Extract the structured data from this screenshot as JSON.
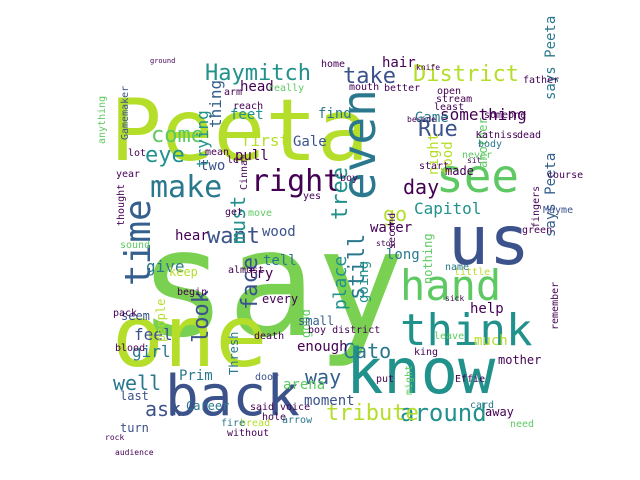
{
  "colors": {
    "background": "#ffffff",
    "palette": [
      "#440154",
      "#3b528b",
      "#21918c",
      "#5ec962",
      "#b5de2b",
      "#2a788e",
      "#7ad151",
      "#355f8d"
    ]
  },
  "words": [
    {
      "text": "say",
      "color": "#7ad151",
      "weight": 1.0
    },
    {
      "text": "Peeta",
      "color": "#b5de2b",
      "weight": 0.85
    },
    {
      "text": "one",
      "color": "#b5de2b",
      "weight": 0.7
    },
    {
      "text": "know",
      "color": "#21918c",
      "weight": 0.6
    },
    {
      "text": "back",
      "color": "#3b528b",
      "weight": 0.55
    },
    {
      "text": "us",
      "color": "#3b528b",
      "weight": 0.5
    },
    {
      "text": "think",
      "color": "#21918c",
      "weight": 0.4
    },
    {
      "text": "hand",
      "color": "#5ec962",
      "weight": 0.38
    },
    {
      "text": "see",
      "color": "#5ec962",
      "weight": 0.36
    },
    {
      "text": "even",
      "color": "#2a788e",
      "weight": 0.34
    },
    {
      "text": "time",
      "color": "#355f8d",
      "weight": 0.3
    },
    {
      "text": "make",
      "color": "#2a788e",
      "weight": 0.28
    },
    {
      "text": "right",
      "color": "#440154",
      "weight": 0.26
    },
    {
      "text": "around",
      "color": "#21918c",
      "weight": 0.24
    },
    {
      "text": "tribute",
      "color": "#b5de2b",
      "weight": 0.22
    },
    {
      "text": "Haymitch",
      "color": "#21918c",
      "weight": 0.21
    },
    {
      "text": "District",
      "color": "#b5de2b",
      "weight": 0.21
    },
    {
      "text": "take",
      "color": "#3b528b",
      "weight": 0.2
    },
    {
      "text": "Rue",
      "color": "#3b528b",
      "weight": 0.2
    },
    {
      "text": "eye",
      "color": "#21918c",
      "weight": 0.2
    },
    {
      "text": "come",
      "color": "#5ec962",
      "weight": 0.2
    },
    {
      "text": "face",
      "color": "#3b528b",
      "weight": 0.18
    },
    {
      "text": "want",
      "color": "#3b528b",
      "weight": 0.18
    },
    {
      "text": "still",
      "color": "#2a788e",
      "weight": 0.18
    },
    {
      "text": "tree",
      "color": "#21918c",
      "weight": 0.18
    },
    {
      "text": "must",
      "color": "#21918c",
      "weight": 0.17
    },
    {
      "text": "look",
      "color": "#3b528b",
      "weight": 0.17
    },
    {
      "text": "Cato",
      "color": "#2a788e",
      "weight": 0.16
    },
    {
      "text": "day",
      "color": "#440154",
      "weight": 0.16
    },
    {
      "text": "go",
      "color": "#b5de2b",
      "weight": 0.16
    },
    {
      "text": "well",
      "color": "#2a788e",
      "weight": 0.16
    },
    {
      "text": "ask",
      "color": "#3b528b",
      "weight": 0.15
    },
    {
      "text": "way",
      "color": "#355f8d",
      "weight": 0.15
    },
    {
      "text": "place",
      "color": "#21918c",
      "weight": 0.14
    },
    {
      "text": "Capitol",
      "color": "#21918c",
      "weight": 0.13
    },
    {
      "text": "give",
      "color": "#2a788e",
      "weight": 0.13
    },
    {
      "text": "first",
      "color": "#b5de2b",
      "weight": 0.12
    },
    {
      "text": "trying",
      "color": "#21918c",
      "weight": 0.12
    },
    {
      "text": "thing",
      "color": "#355f8d",
      "weight": 0.12
    },
    {
      "text": "something",
      "color": "#440154",
      "weight": 0.12
    },
    {
      "text": "feel",
      "color": "#3b528b",
      "weight": 0.12
    },
    {
      "text": "girl",
      "color": "#2a788e",
      "weight": 0.11
    },
    {
      "text": "Gale",
      "color": "#3b528b",
      "weight": 0.11
    },
    {
      "text": "night",
      "color": "#b5de2b",
      "weight": 0.11
    },
    {
      "text": "food",
      "color": "#b5de2b",
      "weight": 0.11
    },
    {
      "text": "water",
      "color": "#440154",
      "weight": 0.11
    },
    {
      "text": "long",
      "color": "#2a788e",
      "weight": 0.11
    },
    {
      "text": "Prim",
      "color": "#2a788e",
      "weight": 0.1
    },
    {
      "text": "arena",
      "color": "#5ec962",
      "weight": 0.1
    },
    {
      "text": "enough",
      "color": "#440154",
      "weight": 0.1
    },
    {
      "text": "moment",
      "color": "#3b528b",
      "weight": 0.1
    },
    {
      "text": "help",
      "color": "#440154",
      "weight": 0.1
    },
    {
      "text": "much",
      "color": "#b5de2b",
      "weight": 0.1
    },
    {
      "text": "says Peeta",
      "color": "#2a788e",
      "weight": 0.1
    },
    {
      "text": "says Peeta",
      "color": "#355f8d",
      "weight": 0.1
    },
    {
      "text": "hear",
      "color": "#440154",
      "weight": 0.1
    },
    {
      "text": "wood",
      "color": "#3b528b",
      "weight": 0.1
    },
    {
      "text": "tell",
      "color": "#2a788e",
      "weight": 0.1
    },
    {
      "text": "try",
      "color": "#440154",
      "weight": 0.1
    },
    {
      "text": "two",
      "color": "#3b528b",
      "weight": 0.1
    },
    {
      "text": "pull",
      "color": "#440154",
      "weight": 0.1
    },
    {
      "text": "feet",
      "color": "#21918c",
      "weight": 0.1
    },
    {
      "text": "find",
      "color": "#2a788e",
      "weight": 0.1
    },
    {
      "text": "head",
      "color": "#440154",
      "weight": 0.1
    },
    {
      "text": "hair",
      "color": "#440154",
      "weight": 0.1
    },
    {
      "text": "Game",
      "color": "#2a788e",
      "weight": 0.1
    },
    {
      "text": "going",
      "color": "#21918c",
      "weight": 0.1
    },
    {
      "text": "nothing",
      "color": "#5ec962",
      "weight": 0.09
    },
    {
      "text": "another",
      "color": "#5ec962",
      "weight": 0.09
    },
    {
      "text": "made",
      "color": "#440154",
      "weight": 0.09
    },
    {
      "text": "mother",
      "color": "#440154",
      "weight": 0.09
    },
    {
      "text": "away",
      "color": "#440154",
      "weight": 0.09
    },
    {
      "text": "Thresh",
      "color": "#2a788e",
      "weight": 0.09
    },
    {
      "text": "people",
      "color": "#b5de2b",
      "weight": 0.09
    },
    {
      "text": "good",
      "color": "#5ec962",
      "weight": 0.09
    },
    {
      "text": "every",
      "color": "#440154",
      "weight": 0.09
    },
    {
      "text": "small",
      "color": "#355f8d",
      "weight": 0.09
    },
    {
      "text": "seem",
      "color": "#3b528b",
      "weight": 0.09
    },
    {
      "text": "keep",
      "color": "#b5de2b",
      "weight": 0.09
    },
    {
      "text": "last",
      "color": "#3b528b",
      "weight": 0.09
    },
    {
      "text": "turn",
      "color": "#3b528b",
      "weight": 0.09
    },
    {
      "text": "need",
      "color": "#5ec962",
      "weight": 0.08
    },
    {
      "text": "Effie",
      "color": "#440154",
      "weight": 0.08
    },
    {
      "text": "card",
      "color": "#2a788e",
      "weight": 0.08
    },
    {
      "text": "put",
      "color": "#440154",
      "weight": 0.08
    },
    {
      "text": "might",
      "color": "#5ec962",
      "weight": 0.08
    },
    {
      "text": "Career",
      "color": "#2a788e",
      "weight": 0.08
    },
    {
      "text": "arrow",
      "color": "#2a788e",
      "weight": 0.08
    },
    {
      "text": "bread",
      "color": "#b5de2b",
      "weight": 0.08
    },
    {
      "text": "fire",
      "color": "#2a788e",
      "weight": 0.08
    },
    {
      "text": "door",
      "color": "#3b528b",
      "weight": 0.08
    },
    {
      "text": "voice",
      "color": "#440154",
      "weight": 0.08
    },
    {
      "text": "remember",
      "color": "#440154",
      "weight": 0.08
    },
    {
      "text": "little",
      "color": "#b5de2b",
      "weight": 0.08
    },
    {
      "text": "name",
      "color": "#2a788e",
      "weight": 0.08
    },
    {
      "text": "fingers",
      "color": "#440154",
      "weight": 0.08
    },
    {
      "text": "Mayme",
      "color": "#3b528b",
      "weight": 0.08
    },
    {
      "text": "course",
      "color": "#440154",
      "weight": 0.08
    },
    {
      "text": "dead",
      "color": "#440154",
      "weight": 0.08
    },
    {
      "text": "never",
      "color": "#5ec962",
      "weight": 0.08
    },
    {
      "text": "body",
      "color": "#2a788e",
      "weight": 0.08
    },
    {
      "text": "father",
      "color": "#440154",
      "weight": 0.08
    },
    {
      "text": "open",
      "color": "#440154",
      "weight": 0.08
    },
    {
      "text": "stream",
      "color": "#440154",
      "weight": 0.08
    },
    {
      "text": "least",
      "color": "#440154",
      "weight": 0.08
    },
    {
      "text": "mouth",
      "color": "#440154",
      "weight": 0.08
    },
    {
      "text": "better",
      "color": "#440154",
      "weight": 0.08
    },
    {
      "text": "arm",
      "color": "#440154",
      "weight": 0.08
    },
    {
      "text": "home",
      "color": "#440154",
      "weight": 0.08
    },
    {
      "text": "lot",
      "color": "#440154",
      "weight": 0.08
    },
    {
      "text": "Gamemaker",
      "color": "#3b528b",
      "weight": 0.08
    },
    {
      "text": "anything",
      "color": "#5ec962",
      "weight": 0.08
    },
    {
      "text": "year",
      "color": "#440154",
      "weight": 0.08
    },
    {
      "text": "thought",
      "color": "#440154",
      "weight": 0.08
    },
    {
      "text": "sound",
      "color": "#5ec962",
      "weight": 0.08
    },
    {
      "text": "pack",
      "color": "#440154",
      "weight": 0.08
    },
    {
      "text": "blood",
      "color": "#440154",
      "weight": 0.08
    },
    {
      "text": "boy",
      "color": "#440154",
      "weight": 0.08
    },
    {
      "text": "almost",
      "color": "#440154",
      "weight": 0.08
    },
    {
      "text": "mean",
      "color": "#440154",
      "weight": 0.08
    },
    {
      "text": "Cinna",
      "color": "#440154",
      "weight": 0.08
    },
    {
      "text": "really",
      "color": "#5ec962",
      "weight": 0.08
    },
    {
      "text": "begin",
      "color": "#440154",
      "weight": 0.08
    },
    {
      "text": "said",
      "color": "#440154",
      "weight": 0.08
    },
    {
      "text": "hole",
      "color": "#440154",
      "weight": 0.08
    },
    {
      "text": "second",
      "color": "#440154",
      "weight": 0.08
    },
    {
      "text": "Katniss",
      "color": "#440154",
      "weight": 0.08
    },
    {
      "text": "someone",
      "color": "#440154",
      "weight": 0.08
    },
    {
      "text": "green",
      "color": "#440154",
      "weight": 0.08
    },
    {
      "text": "reach",
      "color": "#440154",
      "weight": 0.08
    },
    {
      "text": "yes",
      "color": "#440154",
      "weight": 0.08
    },
    {
      "text": "move",
      "color": "#5ec962",
      "weight": 0.08
    },
    {
      "text": "start",
      "color": "#440154",
      "weight": 0.08
    },
    {
      "text": "death",
      "color": "#440154",
      "weight": 0.08
    },
    {
      "text": "without",
      "color": "#440154",
      "weight": 0.08
    },
    {
      "text": "king",
      "color": "#440154",
      "weight": 0.08
    },
    {
      "text": "leave",
      "color": "#5ec962",
      "weight": 0.08
    },
    {
      "text": "ground",
      "color": "#440154",
      "weight": 0.08
    },
    {
      "text": "boy district",
      "color": "#440154",
      "weight": 0.05
    },
    {
      "text": "get",
      "color": "#440154",
      "weight": 0.05
    },
    {
      "text": "lef",
      "color": "#440154",
      "weight": 0.05
    },
    {
      "text": "knife",
      "color": "#440154",
      "weight": 0.05
    },
    {
      "text": "beside",
      "color": "#440154",
      "weight": 0.05
    },
    {
      "text": "stop",
      "color": "#440154",
      "weight": 0.05
    },
    {
      "text": "sit",
      "color": "#440154",
      "weight": 0.05
    },
    {
      "text": "sick",
      "color": "#440154",
      "weight": 0.05
    },
    {
      "text": "audience",
      "color": "#440154",
      "weight": 0.05
    },
    {
      "text": "rock",
      "color": "#440154",
      "weight": 0.05
    },
    {
      "text": "show",
      "color": "#440154",
      "weight": 0.05
    },
    {
      "text": "though",
      "color": "#440154",
      "weight": 0.05
    },
    {
      "text": "bow",
      "color": "#440154",
      "weight": 0.05
    }
  ]
}
